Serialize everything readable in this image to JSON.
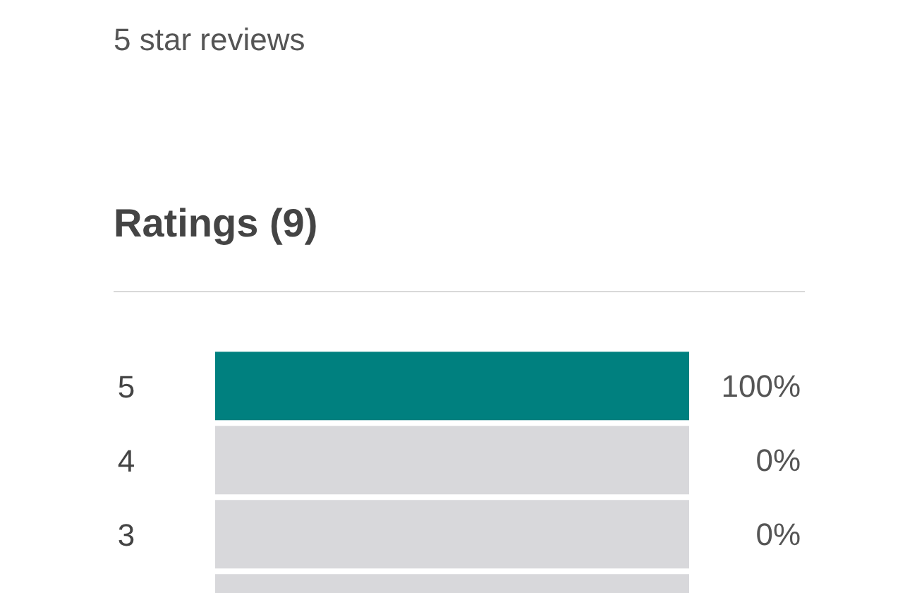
{
  "chart_data": {
    "type": "bar",
    "orientation": "horizontal",
    "stacked": true,
    "title": "Ratings (9)",
    "annotations": [
      "5 star reviews"
    ],
    "categories": [
      "5",
      "4",
      "3",
      null
    ],
    "series": [
      {
        "color": "#00807f",
        "values": [
          100,
          0,
          0,
          null
        ],
        "value_labels": [
          "100%",
          "0%",
          "0%",
          null
        ]
      },
      {
        "color": "#d8d8db",
        "values": [
          0,
          100,
          100,
          100
        ]
      }
    ],
    "tick_labels": "y",
    "grid": false
  }
}
